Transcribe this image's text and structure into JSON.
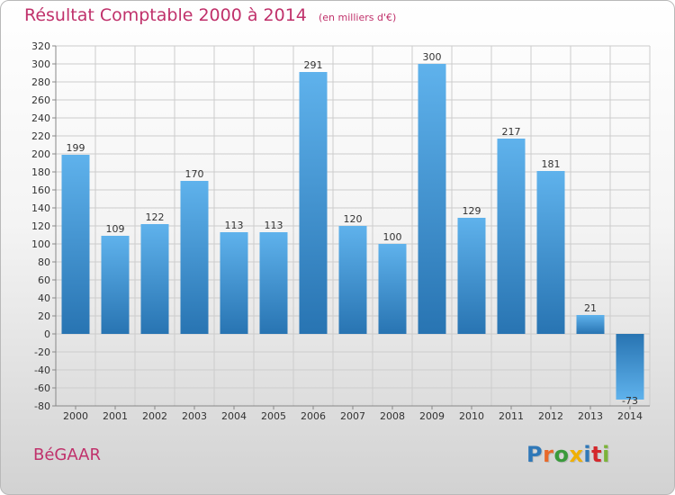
{
  "header": {
    "title": "Résultat Comptable 2000 à 2014",
    "unit": "(en milliers d'€)"
  },
  "commune": "BéGAAR",
  "logo": {
    "text": "Proxiti",
    "letter_colors": [
      "#2f78b8",
      "#e8692a",
      "#3a9a3c",
      "#f0b000",
      "#2f78b8",
      "#d4282c",
      "#7cb33a"
    ]
  },
  "colors": {
    "bar_light": "#5fb2ec",
    "bar_dark": "#2874b2",
    "grid": "#cccccc",
    "accent": "#c0316b"
  },
  "chart_data": {
    "type": "bar",
    "categories": [
      "2000",
      "2001",
      "2002",
      "2003",
      "2004",
      "2005",
      "2006",
      "2007",
      "2008",
      "2009",
      "2010",
      "2011",
      "2012",
      "2013",
      "2014"
    ],
    "values": [
      199,
      109,
      122,
      170,
      113,
      113,
      291,
      120,
      100,
      300,
      129,
      217,
      181,
      21,
      -73
    ],
    "data_labels": [
      "199",
      "109",
      "122",
      "170",
      "113",
      "113",
      "291",
      "120",
      "100",
      "300",
      "129",
      "217",
      "181",
      "21",
      "-73"
    ],
    "ylim": [
      -80,
      320
    ],
    "yticks": [
      -80,
      -60,
      -40,
      -20,
      0,
      20,
      40,
      60,
      80,
      100,
      120,
      140,
      160,
      180,
      200,
      220,
      240,
      260,
      280,
      300,
      320
    ],
    "ytick_labels": [
      "-80",
      "-60",
      "-40",
      "-20",
      "0",
      "20",
      "40",
      "60",
      "80",
      "100",
      "120",
      "140",
      "160",
      "180",
      "200",
      "220",
      "240",
      "260",
      "280",
      "300",
      "320"
    ],
    "grid": true,
    "xlabel": "",
    "ylabel": ""
  }
}
